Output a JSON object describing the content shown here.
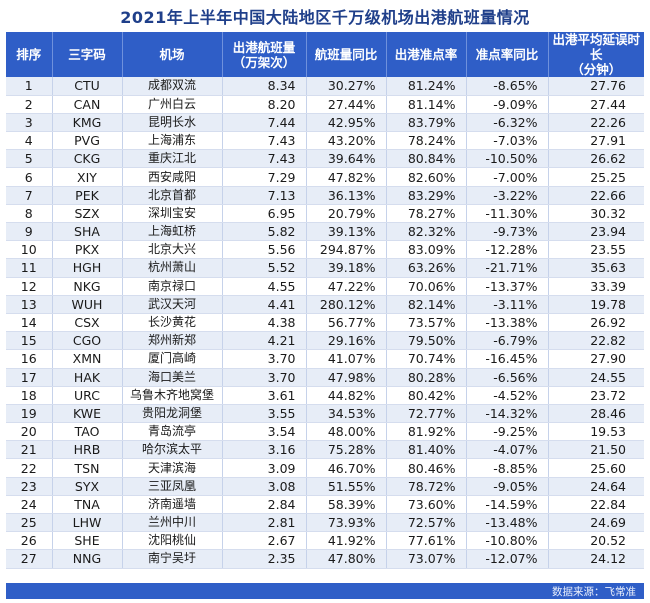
{
  "title": "2021年上半年中国大陆地区千万级机场出港航班量情况",
  "headers": {
    "rank": "排序",
    "code": "三字码",
    "airport": "机场",
    "flights_line1": "出港航班量",
    "flights_line2": "（万架次）",
    "yoy": "航班量同比",
    "otp": "出港准点率",
    "otp_yoy": "准点率同比",
    "delay_line1": "出港平均延误时长",
    "delay_line2": "（分钟）"
  },
  "rows": [
    {
      "rank": "1",
      "code": "CTU",
      "airport": "成都双流",
      "flights": "8.34",
      "yoy": "30.27%",
      "otp": "81.24%",
      "otp_yoy": "-8.65%",
      "delay": "27.76"
    },
    {
      "rank": "2",
      "code": "CAN",
      "airport": "广州白云",
      "flights": "8.20",
      "yoy": "27.44%",
      "otp": "81.14%",
      "otp_yoy": "-9.09%",
      "delay": "27.44"
    },
    {
      "rank": "3",
      "code": "KMG",
      "airport": "昆明长水",
      "flights": "7.44",
      "yoy": "42.95%",
      "otp": "83.79%",
      "otp_yoy": "-6.32%",
      "delay": "22.26"
    },
    {
      "rank": "4",
      "code": "PVG",
      "airport": "上海浦东",
      "flights": "7.43",
      "yoy": "43.20%",
      "otp": "78.24%",
      "otp_yoy": "-7.03%",
      "delay": "27.91"
    },
    {
      "rank": "5",
      "code": "CKG",
      "airport": "重庆江北",
      "flights": "7.43",
      "yoy": "39.64%",
      "otp": "80.84%",
      "otp_yoy": "-10.50%",
      "delay": "26.62"
    },
    {
      "rank": "6",
      "code": "XIY",
      "airport": "西安咸阳",
      "flights": "7.29",
      "yoy": "47.82%",
      "otp": "82.60%",
      "otp_yoy": "-7.00%",
      "delay": "25.25"
    },
    {
      "rank": "7",
      "code": "PEK",
      "airport": "北京首都",
      "flights": "7.13",
      "yoy": "36.13%",
      "otp": "83.29%",
      "otp_yoy": "-3.22%",
      "delay": "22.66"
    },
    {
      "rank": "8",
      "code": "SZX",
      "airport": "深圳宝安",
      "flights": "6.95",
      "yoy": "20.79%",
      "otp": "78.27%",
      "otp_yoy": "-11.30%",
      "delay": "30.32"
    },
    {
      "rank": "9",
      "code": "SHA",
      "airport": "上海虹桥",
      "flights": "5.82",
      "yoy": "39.13%",
      "otp": "82.32%",
      "otp_yoy": "-9.73%",
      "delay": "23.94"
    },
    {
      "rank": "10",
      "code": "PKX",
      "airport": "北京大兴",
      "flights": "5.56",
      "yoy": "294.87%",
      "otp": "83.09%",
      "otp_yoy": "-12.28%",
      "delay": "23.55"
    },
    {
      "rank": "11",
      "code": "HGH",
      "airport": "杭州萧山",
      "flights": "5.52",
      "yoy": "39.18%",
      "otp": "63.26%",
      "otp_yoy": "-21.71%",
      "delay": "35.63"
    },
    {
      "rank": "12",
      "code": "NKG",
      "airport": "南京禄口",
      "flights": "4.55",
      "yoy": "47.22%",
      "otp": "70.06%",
      "otp_yoy": "-13.37%",
      "delay": "33.39"
    },
    {
      "rank": "13",
      "code": "WUH",
      "airport": "武汉天河",
      "flights": "4.41",
      "yoy": "280.12%",
      "otp": "82.14%",
      "otp_yoy": "-3.11%",
      "delay": "19.78"
    },
    {
      "rank": "14",
      "code": "CSX",
      "airport": "长沙黄花",
      "flights": "4.38",
      "yoy": "56.77%",
      "otp": "73.57%",
      "otp_yoy": "-13.38%",
      "delay": "26.92"
    },
    {
      "rank": "15",
      "code": "CGO",
      "airport": "郑州新郑",
      "flights": "4.21",
      "yoy": "29.16%",
      "otp": "79.50%",
      "otp_yoy": "-6.79%",
      "delay": "22.82"
    },
    {
      "rank": "16",
      "code": "XMN",
      "airport": "厦门高崎",
      "flights": "3.70",
      "yoy": "41.07%",
      "otp": "70.74%",
      "otp_yoy": "-16.45%",
      "delay": "27.90"
    },
    {
      "rank": "17",
      "code": "HAK",
      "airport": "海口美兰",
      "flights": "3.70",
      "yoy": "47.98%",
      "otp": "80.28%",
      "otp_yoy": "-6.56%",
      "delay": "24.55"
    },
    {
      "rank": "18",
      "code": "URC",
      "airport": "乌鲁木齐地窝堡",
      "flights": "3.61",
      "yoy": "44.82%",
      "otp": "80.42%",
      "otp_yoy": "-4.52%",
      "delay": "23.72"
    },
    {
      "rank": "19",
      "code": "KWE",
      "airport": "贵阳龙洞堡",
      "flights": "3.55",
      "yoy": "34.53%",
      "otp": "72.77%",
      "otp_yoy": "-14.32%",
      "delay": "28.46"
    },
    {
      "rank": "20",
      "code": "TAO",
      "airport": "青岛流亭",
      "flights": "3.54",
      "yoy": "48.00%",
      "otp": "81.92%",
      "otp_yoy": "-9.25%",
      "delay": "19.53"
    },
    {
      "rank": "21",
      "code": "HRB",
      "airport": "哈尔滨太平",
      "flights": "3.16",
      "yoy": "75.28%",
      "otp": "81.40%",
      "otp_yoy": "-4.07%",
      "delay": "21.50"
    },
    {
      "rank": "22",
      "code": "TSN",
      "airport": "天津滨海",
      "flights": "3.09",
      "yoy": "46.70%",
      "otp": "80.46%",
      "otp_yoy": "-8.85%",
      "delay": "25.60"
    },
    {
      "rank": "23",
      "code": "SYX",
      "airport": "三亚凤凰",
      "flights": "3.08",
      "yoy": "51.55%",
      "otp": "78.72%",
      "otp_yoy": "-9.05%",
      "delay": "24.64"
    },
    {
      "rank": "24",
      "code": "TNA",
      "airport": "济南遥墙",
      "flights": "2.84",
      "yoy": "58.39%",
      "otp": "73.60%",
      "otp_yoy": "-14.59%",
      "delay": "22.84"
    },
    {
      "rank": "25",
      "code": "LHW",
      "airport": "兰州中川",
      "flights": "2.81",
      "yoy": "73.93%",
      "otp": "72.57%",
      "otp_yoy": "-13.48%",
      "delay": "24.69"
    },
    {
      "rank": "26",
      "code": "SHE",
      "airport": "沈阳桃仙",
      "flights": "2.67",
      "yoy": "41.92%",
      "otp": "77.61%",
      "otp_yoy": "-10.80%",
      "delay": "20.52"
    },
    {
      "rank": "27",
      "code": "NNG",
      "airport": "南宁吴圩",
      "flights": "2.35",
      "yoy": "47.80%",
      "otp": "73.07%",
      "otp_yoy": "-12.07%",
      "delay": "24.12"
    }
  ],
  "source": "数据来源：飞常准"
}
